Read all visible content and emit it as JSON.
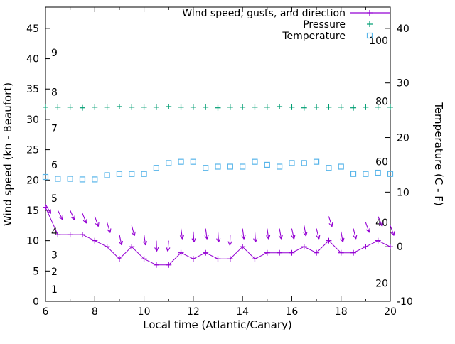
{
  "chart_data": {
    "type": "line",
    "title": "",
    "x_label": "Local time (Atlantic/Canary)",
    "y_left_label": "Wind speed (kn - Beaufort)",
    "y_right_label": "Temperature (C - F)",
    "x_range": [
      6,
      20
    ],
    "y_left_range": [
      0,
      48.5
    ],
    "x_major_ticks": [
      6,
      8,
      10,
      12,
      14,
      16,
      18,
      20
    ],
    "x_minor_ticks": [
      7,
      9,
      11,
      13,
      15,
      17,
      19
    ],
    "y_left_ticks": [
      0,
      5,
      10,
      15,
      20,
      25,
      30,
      35,
      40,
      45
    ],
    "y_right_ticks_c": [
      -10,
      0,
      10,
      20,
      30,
      40
    ],
    "beaufort_labels": [
      {
        "label": "1",
        "kn": 2.0
      },
      {
        "label": "2",
        "kn": 4.9
      },
      {
        "label": "3",
        "kn": 7.7
      },
      {
        "label": "4",
        "kn": 11.5
      },
      {
        "label": "5",
        "kn": 17.0
      },
      {
        "label": "6",
        "kn": 22.5
      },
      {
        "label": "7",
        "kn": 28.5
      },
      {
        "label": "8",
        "kn": 34.5
      },
      {
        "label": "9",
        "kn": 41.0
      }
    ],
    "fahrenheit_labels": [
      {
        "label": "20",
        "f": 20
      },
      {
        "label": "40",
        "f": 40
      },
      {
        "label": "60",
        "f": 60
      },
      {
        "label": "80",
        "f": 80
      },
      {
        "label": "100",
        "f": 100
      }
    ],
    "legend": [
      {
        "label": "Wind speed, gusts, and direction",
        "color": "#9400d3",
        "marker": "plus-line"
      },
      {
        "label": "Pressure",
        "color": "#009e73",
        "marker": "plus"
      },
      {
        "label": "Temperature",
        "color": "#56b4e9",
        "marker": "square"
      }
    ],
    "x": [
      6,
      6.5,
      7,
      7.5,
      8,
      8.5,
      9,
      9.5,
      10,
      10.5,
      11,
      11.5,
      12,
      12.5,
      13,
      13.5,
      14,
      14.5,
      15,
      15.5,
      16,
      16.5,
      17,
      17.5,
      18,
      18.5,
      19,
      19.5,
      20
    ],
    "series": [
      {
        "name": "wind_speed_kn",
        "color": "#9400d3",
        "style": "line-plus",
        "values": [
          15.5,
          11,
          11,
          11,
          10,
          9,
          7,
          9,
          7,
          6,
          6,
          8,
          7,
          8,
          7,
          7,
          9,
          7,
          8,
          8,
          8,
          9,
          8,
          10,
          8,
          8,
          9,
          10,
          9
        ]
      },
      {
        "name": "wind_gusts_kn",
        "color": "#9400d3",
        "style": "direction-arrows",
        "values": [
          16,
          15,
          15,
          14.5,
          14,
          13,
          11,
          12.5,
          11,
          10,
          10,
          12,
          11.5,
          12,
          11.5,
          11,
          12,
          11.5,
          12,
          12,
          12,
          12.5,
          12,
          14,
          11.5,
          12,
          13,
          14,
          12.5
        ],
        "directions_deg": [
          150,
          152,
          155,
          158,
          160,
          163,
          168,
          165,
          172,
          178,
          185,
          172,
          176,
          172,
          176,
          182,
          172,
          176,
          172,
          170,
          168,
          170,
          166,
          162,
          170,
          166,
          160,
          156,
          160
        ]
      },
      {
        "name": "pressure",
        "color": "#009e73",
        "style": "plus",
        "values": [
          32,
          32,
          32,
          31.9,
          32,
          32,
          32.1,
          32,
          32,
          32,
          32.1,
          32,
          32,
          32,
          31.9,
          32,
          32,
          32,
          32,
          32.1,
          32,
          31.9,
          32,
          32,
          32,
          31.9,
          32,
          32,
          32
        ]
      },
      {
        "name": "temperature",
        "color": "#56b4e9",
        "style": "square",
        "values": [
          20.5,
          20.2,
          20.2,
          20.1,
          20.1,
          20.8,
          21,
          21,
          21,
          22,
          22.8,
          23,
          23,
          22,
          22.2,
          22.2,
          22.2,
          23,
          22.5,
          22.2,
          22.8,
          22.8,
          23,
          22,
          22.2,
          21,
          21,
          21.2,
          21
        ]
      }
    ]
  }
}
